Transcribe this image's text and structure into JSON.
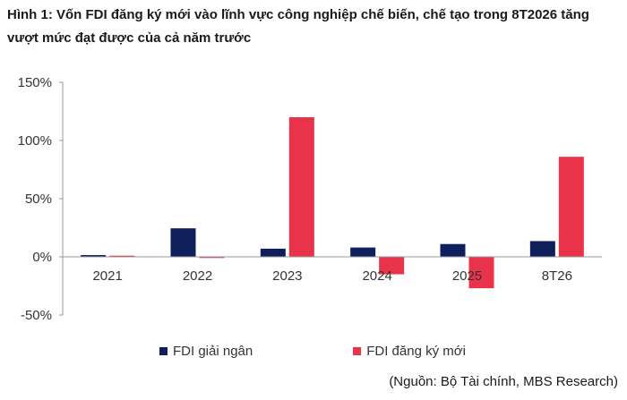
{
  "title": "Hình 1: Vốn FDI đăng ký mới vào lĩnh vực công nghiệp chế biến, chế tạo trong 8T2026 tăng vượt mức đạt được của cả năm trước",
  "source": "(Nguồn: Bộ Tài chính, MBS Research)",
  "chart_data": {
    "type": "bar",
    "categories": [
      "2021",
      "2022",
      "2023",
      "2024",
      "2025",
      "8T26"
    ],
    "series": [
      {
        "name": "FDI giải ngân",
        "color": "#0f1f5c",
        "values": [
          1.5,
          24.5,
          7,
          8,
          11,
          13.5
        ]
      },
      {
        "name": "FDI đăng ký mới",
        "color": "#e8334a",
        "values": [
          1,
          -1,
          120,
          -15,
          -27,
          86
        ]
      }
    ],
    "yticks": [
      "150%",
      "100%",
      "50%",
      "0%",
      "-50%"
    ],
    "ytick_values": [
      150,
      100,
      50,
      0,
      -50
    ],
    "ylim": [
      -50,
      150
    ],
    "unit": "%",
    "grid": false,
    "legend_position": "bottom"
  }
}
